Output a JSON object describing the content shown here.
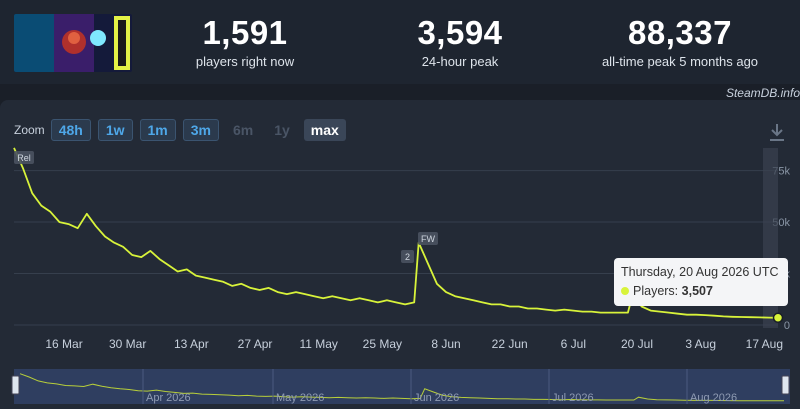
{
  "stats": [
    {
      "value": "1,591",
      "label": "players right now"
    },
    {
      "value": "3,594",
      "label": "24-hour peak"
    },
    {
      "value": "88,337",
      "label": "all-time peak 5 months ago"
    }
  ],
  "credit": "SteamDB.info",
  "zoom": {
    "label": "Zoom",
    "buttons": [
      {
        "label": "48h",
        "state": "on"
      },
      {
        "label": "1w",
        "state": "on"
      },
      {
        "label": "1m",
        "state": "on"
      },
      {
        "label": "3m",
        "state": "on"
      },
      {
        "label": "6m",
        "state": "disabled"
      },
      {
        "label": "1y",
        "state": "disabled"
      },
      {
        "label": "max",
        "state": "selected"
      }
    ]
  },
  "tooltip": {
    "date": "Thursday, 20 Aug 2026 UTC",
    "series_label": "Players:",
    "value": "3,507"
  },
  "chart_data": {
    "type": "line",
    "x_ticks": [
      "16 Mar",
      "30 Mar",
      "13 Apr",
      "27 Apr",
      "11 May",
      "25 May",
      "8 Jun",
      "22 Jun",
      "6 Jul",
      "20 Jul",
      "3 Aug",
      "17 Aug"
    ],
    "y_ticks": [
      "0",
      "25k",
      "50k",
      "75k"
    ],
    "ylim": [
      0,
      85000
    ],
    "series": [
      {
        "color": "#d8f33a",
        "x": [
          "2026-03-05",
          "2026-03-07",
          "2026-03-09",
          "2026-03-11",
          "2026-03-13",
          "2026-03-15",
          "2026-03-17",
          "2026-03-19",
          "2026-03-21",
          "2026-03-23",
          "2026-03-25",
          "2026-03-27",
          "2026-03-29",
          "2026-03-31",
          "2026-04-02",
          "2026-04-04",
          "2026-04-06",
          "2026-04-08",
          "2026-04-10",
          "2026-04-12",
          "2026-04-14",
          "2026-04-16",
          "2026-04-18",
          "2026-04-20",
          "2026-04-22",
          "2026-04-24",
          "2026-04-26",
          "2026-04-28",
          "2026-04-30",
          "2026-05-02",
          "2026-05-04",
          "2026-05-06",
          "2026-05-08",
          "2026-05-10",
          "2026-05-12",
          "2026-05-14",
          "2026-05-16",
          "2026-05-18",
          "2026-05-20",
          "2026-05-22",
          "2026-05-24",
          "2026-05-26",
          "2026-05-28",
          "2026-05-30",
          "2026-06-01",
          "2026-06-02",
          "2026-06-04",
          "2026-06-06",
          "2026-06-08",
          "2026-06-10",
          "2026-06-12",
          "2026-06-14",
          "2026-06-16",
          "2026-06-18",
          "2026-06-20",
          "2026-06-22",
          "2026-06-24",
          "2026-06-26",
          "2026-06-28",
          "2026-06-30",
          "2026-07-02",
          "2026-07-04",
          "2026-07-06",
          "2026-07-08",
          "2026-07-10",
          "2026-07-12",
          "2026-07-14",
          "2026-07-16",
          "2026-07-18",
          "2026-07-19",
          "2026-07-21",
          "2026-07-23",
          "2026-07-25",
          "2026-07-27",
          "2026-07-29",
          "2026-07-31",
          "2026-08-02",
          "2026-08-04",
          "2026-08-06",
          "2026-08-08",
          "2026-08-10",
          "2026-08-12",
          "2026-08-14",
          "2026-08-16",
          "2026-08-18",
          "2026-08-20"
        ],
        "values": [
          86000,
          76000,
          64000,
          58000,
          55000,
          50000,
          49000,
          47000,
          54000,
          48000,
          43000,
          40000,
          38000,
          34000,
          33000,
          36000,
          32000,
          29000,
          26000,
          27000,
          24000,
          23000,
          22000,
          21000,
          19000,
          20000,
          18000,
          17000,
          18000,
          16000,
          15000,
          16000,
          15000,
          14000,
          13000,
          14000,
          13000,
          12000,
          13000,
          12000,
          11000,
          12000,
          11000,
          10000,
          11000,
          40000,
          30000,
          20000,
          16000,
          14000,
          13000,
          12000,
          11000,
          10000,
          10000,
          9000,
          9000,
          8000,
          8000,
          7500,
          7000,
          7500,
          7000,
          6500,
          6500,
          6000,
          6000,
          6000,
          6000,
          14500,
          9000,
          7000,
          6500,
          6000,
          5500,
          5000,
          5000,
          4800,
          4500,
          4200,
          4000,
          3900,
          3800,
          3700,
          3600,
          3507
        ]
      }
    ],
    "annotations": [
      "Rel",
      "FW",
      "2"
    ]
  },
  "navigator": {
    "labels": [
      "Apr 2026",
      "May 2026",
      "Jun 2026",
      "Jul 2026",
      "Aug 2026"
    ]
  }
}
